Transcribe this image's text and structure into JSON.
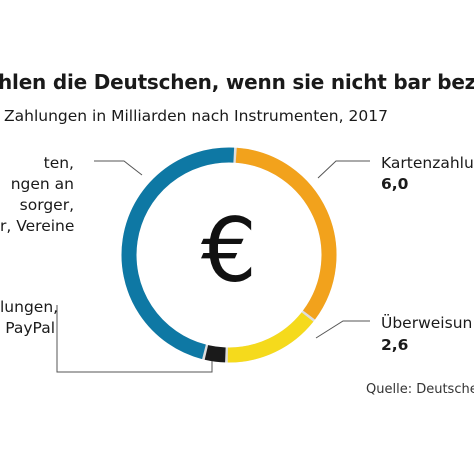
{
  "title": "hlen die Deutschen, wenn sie nicht bar beza",
  "subtitle": "Zahlungen in Milliarden nach Instrumenten, 2017",
  "source": "Quelle: Deutsche",
  "labels": {
    "left_top": [
      "ten,",
      "ngen an",
      "sorger,",
      "r, Vereine"
    ],
    "left_bottom": [
      "lungen,",
      "PayPal"
    ],
    "card": "Kartenzahlu",
    "card_value": "6,0",
    "transfer": "Überweisun",
    "transfer_value": "2,6"
  },
  "center_symbol": "€",
  "colors": {
    "blue": "#0e78a4",
    "orange": "#f2a21c",
    "yellow": "#f5da1c",
    "black": "#1a1a1a",
    "lightgray": "#dddddd",
    "leader": "#555555"
  },
  "chart_data": {
    "type": "donut",
    "title": "",
    "unit": "Milliarden",
    "segments": [
      {
        "name": "Kartenzahlu",
        "value": 6.0,
        "color": "#f2a21c"
      },
      {
        "name": "Überweisun",
        "value": 2.6,
        "color": "#f5da1c"
      },
      {
        "name": "lungen, PayPal",
        "value": 0.6,
        "color": "#1a1a1a"
      },
      {
        "name": "ten, ngen an sorger, r, Vereine",
        "value": 8.2,
        "color": "#0e78a4"
      }
    ]
  }
}
